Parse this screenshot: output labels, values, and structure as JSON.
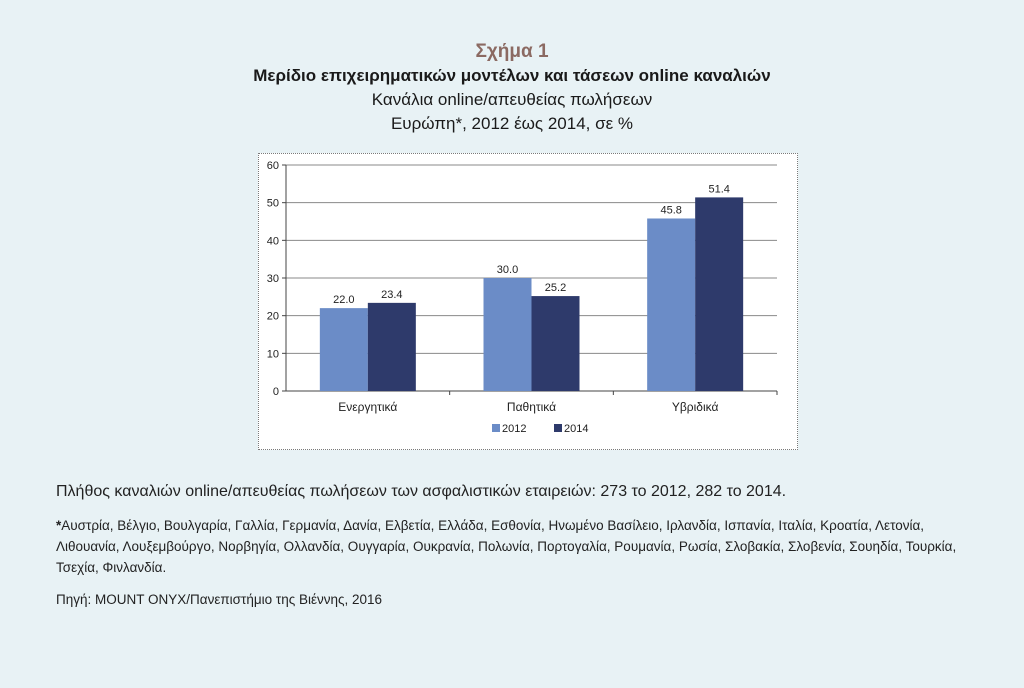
{
  "figure": {
    "label": "Σχήμα 1",
    "title": "Μερίδιο επιχειρηματικών μοντέλων και τάσεων online καναλιών",
    "subtitle": "Κανάλια online/απευθείας πωλήσεων",
    "subtitle2": "Ευρώπη*, 2012 έως 2014, σε %"
  },
  "chart_data": {
    "type": "bar",
    "categories": [
      "Ενεργητικά",
      "Παθητικά",
      "Υβριδικά"
    ],
    "series": [
      {
        "name": "2012",
        "values": [
          22.0,
          30.0,
          45.8
        ],
        "color": "#6b8cc7"
      },
      {
        "name": "2014",
        "values": [
          23.4,
          25.2,
          51.4
        ],
        "color": "#2e3a6b"
      }
    ],
    "ylim": [
      0,
      60
    ],
    "yticks": [
      "0",
      "10",
      "20",
      "30",
      "40",
      "50",
      "60"
    ],
    "value_labels": [
      [
        "22.0",
        "30.0",
        "45.8"
      ],
      [
        "23.4",
        "25.2",
        "51.4"
      ]
    ],
    "grid": true,
    "legend": "bottom"
  },
  "notes": {
    "count_line": "Πλήθος καναλιών online/απευθείας πωλήσεων των ασφαλιστικών εταιρειών: 273 το 2012, 282 το 2014.",
    "countries_star": "*",
    "countries": "Αυστρία, Βέλγιο, Βουλγαρία, Γαλλία, Γερμανία, Δανία, Ελβετία, Ελλάδα, Εσθονία, Ηνωμένο Βασίλειο, Ιρλανδία, Ισπανία, Ιταλία, Κροατία, Λετονία, Λιθουανία, Λουξεμβούργο, Νορβηγία, Ολλανδία, Ουγγαρία, Ουκρανία, Πολωνία, Πορτογαλία, Ρουμανία, Ρωσία, Σλοβακία, Σλοβενία, Σουηδία, Τουρκία, Τσεχία, Φινλανδία.",
    "source": "Πηγή: MOUNT ONYX/Πανεπιστήμιο της Βιέννης, 2016"
  }
}
